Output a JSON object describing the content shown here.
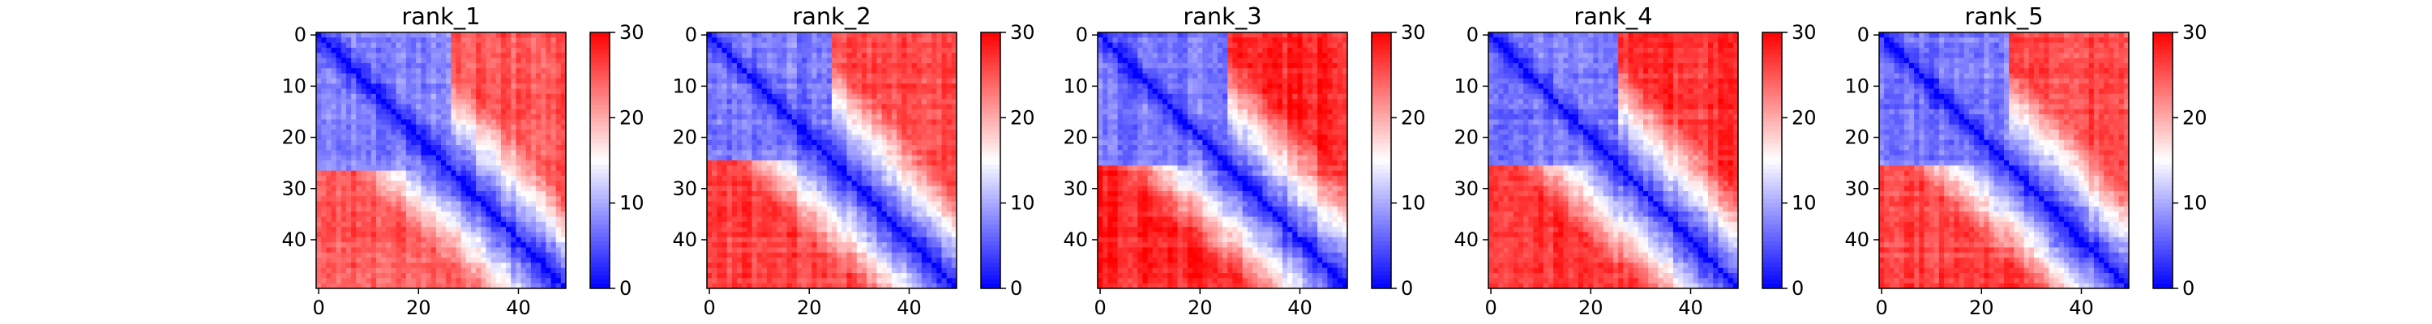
{
  "chart_data": [
    {
      "type": "heatmap",
      "title": "rank_1",
      "matrix_size": 50,
      "xticks": [
        0,
        20,
        40
      ],
      "yticks": [
        0,
        10,
        20,
        30,
        40
      ],
      "colorbar": {
        "ticks": [
          0,
          10,
          20,
          30
        ],
        "vmin": 0,
        "vmax": 30,
        "colormap": "bwr"
      },
      "block_split": 27,
      "within_block_mean": 8,
      "off_block_mean": 25,
      "diagonal_value": 0
    },
    {
      "type": "heatmap",
      "title": "rank_2",
      "matrix_size": 50,
      "xticks": [
        0,
        20,
        40
      ],
      "yticks": [
        0,
        10,
        20,
        30,
        40
      ],
      "colorbar": {
        "ticks": [
          0,
          10,
          20,
          30
        ],
        "vmin": 0,
        "vmax": 30,
        "colormap": "bwr"
      },
      "block_split": 25,
      "within_block_mean": 7,
      "off_block_mean": 26,
      "diagonal_value": 0
    },
    {
      "type": "heatmap",
      "title": "rank_3",
      "matrix_size": 50,
      "xticks": [
        0,
        20,
        40
      ],
      "yticks": [
        0,
        10,
        20,
        30,
        40
      ],
      "colorbar": {
        "ticks": [
          0,
          10,
          20,
          30
        ],
        "vmin": 0,
        "vmax": 30,
        "colormap": "bwr"
      },
      "block_split": 26,
      "within_block_mean": 7,
      "off_block_mean": 28,
      "diagonal_value": 0
    },
    {
      "type": "heatmap",
      "title": "rank_4",
      "matrix_size": 50,
      "xticks": [
        0,
        20,
        40
      ],
      "yticks": [
        0,
        10,
        20,
        30,
        40
      ],
      "colorbar": {
        "ticks": [
          0,
          10,
          20,
          30
        ],
        "vmin": 0,
        "vmax": 30,
        "colormap": "bwr"
      },
      "block_split": 26,
      "within_block_mean": 7,
      "off_block_mean": 27,
      "diagonal_value": 0
    },
    {
      "type": "heatmap",
      "title": "rank_5",
      "matrix_size": 50,
      "xticks": [
        0,
        20,
        40
      ],
      "yticks": [
        0,
        10,
        20,
        30,
        40
      ],
      "colorbar": {
        "ticks": [
          0,
          10,
          20,
          30
        ],
        "vmin": 0,
        "vmax": 30,
        "colormap": "bwr"
      },
      "block_split": 26,
      "within_block_mean": 7,
      "off_block_mean": 26,
      "diagonal_value": 0
    }
  ]
}
